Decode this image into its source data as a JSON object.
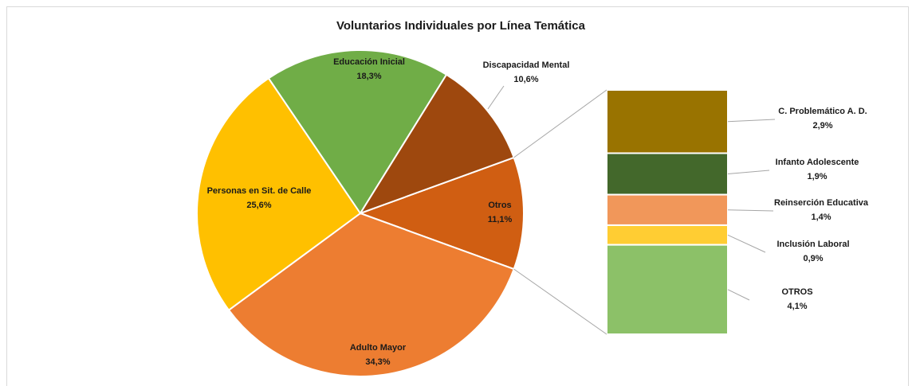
{
  "chart_data": {
    "type": "pie-of-bar",
    "title": "Voluntarios Individuales por Línea Temática",
    "categories": [
      "Otros",
      "Adulto Mayor",
      "Personas en Sit. de Calle",
      "Educación Inicial",
      "Discapacidad Mental"
    ],
    "values": [
      11.1,
      34.3,
      25.6,
      18.3,
      10.6
    ],
    "value_labels": [
      "11,1%",
      "34,3%",
      "25,6%",
      "18,3%",
      "10,6%"
    ],
    "colors": [
      "#d05e12",
      "#ed7d31",
      "#ffc000",
      "#70ad47",
      "#9e480e"
    ],
    "secondary": {
      "categories": [
        "C. Problemático A. D.",
        "Infanto Adolescente",
        "Reinserción Educativa",
        "Inclusión Laboral",
        "OTROS"
      ],
      "values": [
        2.9,
        1.9,
        1.4,
        0.9,
        4.1
      ],
      "value_labels": [
        "2,9%",
        "1,9%",
        "1,4%",
        "0,9%",
        "4,1%"
      ],
      "colors": [
        "#997300",
        "#43682b",
        "#f1975a",
        "#ffcd33",
        "#8cc168"
      ]
    }
  }
}
